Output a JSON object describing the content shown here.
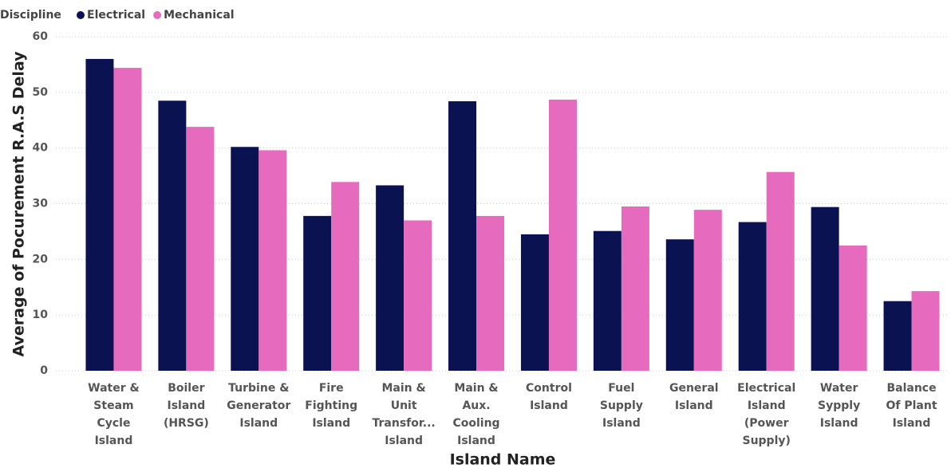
{
  "chart_data": {
    "type": "bar",
    "legend_title": "Discipline",
    "x_label": "Island Name",
    "y_label": "Average of Pocurement R.A.S Delay",
    "categories": [
      "Water & Steam Cycle Island",
      "Boiler Island (HRSG)",
      "Turbine & Generator Island",
      "Fire Fighting Island",
      "Main & Unit Transfor... Island",
      "Main & Aux. Cooling Island",
      "Control Island",
      "Fuel Supply Island",
      "General Island",
      "Electrical Island (Power Supply)",
      "Water Sypply Island",
      "Balance Of Plant Island"
    ],
    "series": [
      {
        "name": "Electrical",
        "color": "#0b1251",
        "values": [
          56,
          48.5,
          40.2,
          27.8,
          33.3,
          48.4,
          24.5,
          25.1,
          23.6,
          26.7,
          29.4,
          12.5
        ]
      },
      {
        "name": "Mechanical",
        "color": "#e66abd",
        "values": [
          54.4,
          43.8,
          39.6,
          33.9,
          27,
          27.8,
          48.7,
          29.5,
          28.9,
          35.7,
          22.5,
          14.3
        ]
      }
    ],
    "ylim": [
      0,
      60
    ],
    "yticks": [
      0,
      10,
      20,
      30,
      40,
      50,
      60
    ],
    "grid": true,
    "legend": "top-left"
  }
}
